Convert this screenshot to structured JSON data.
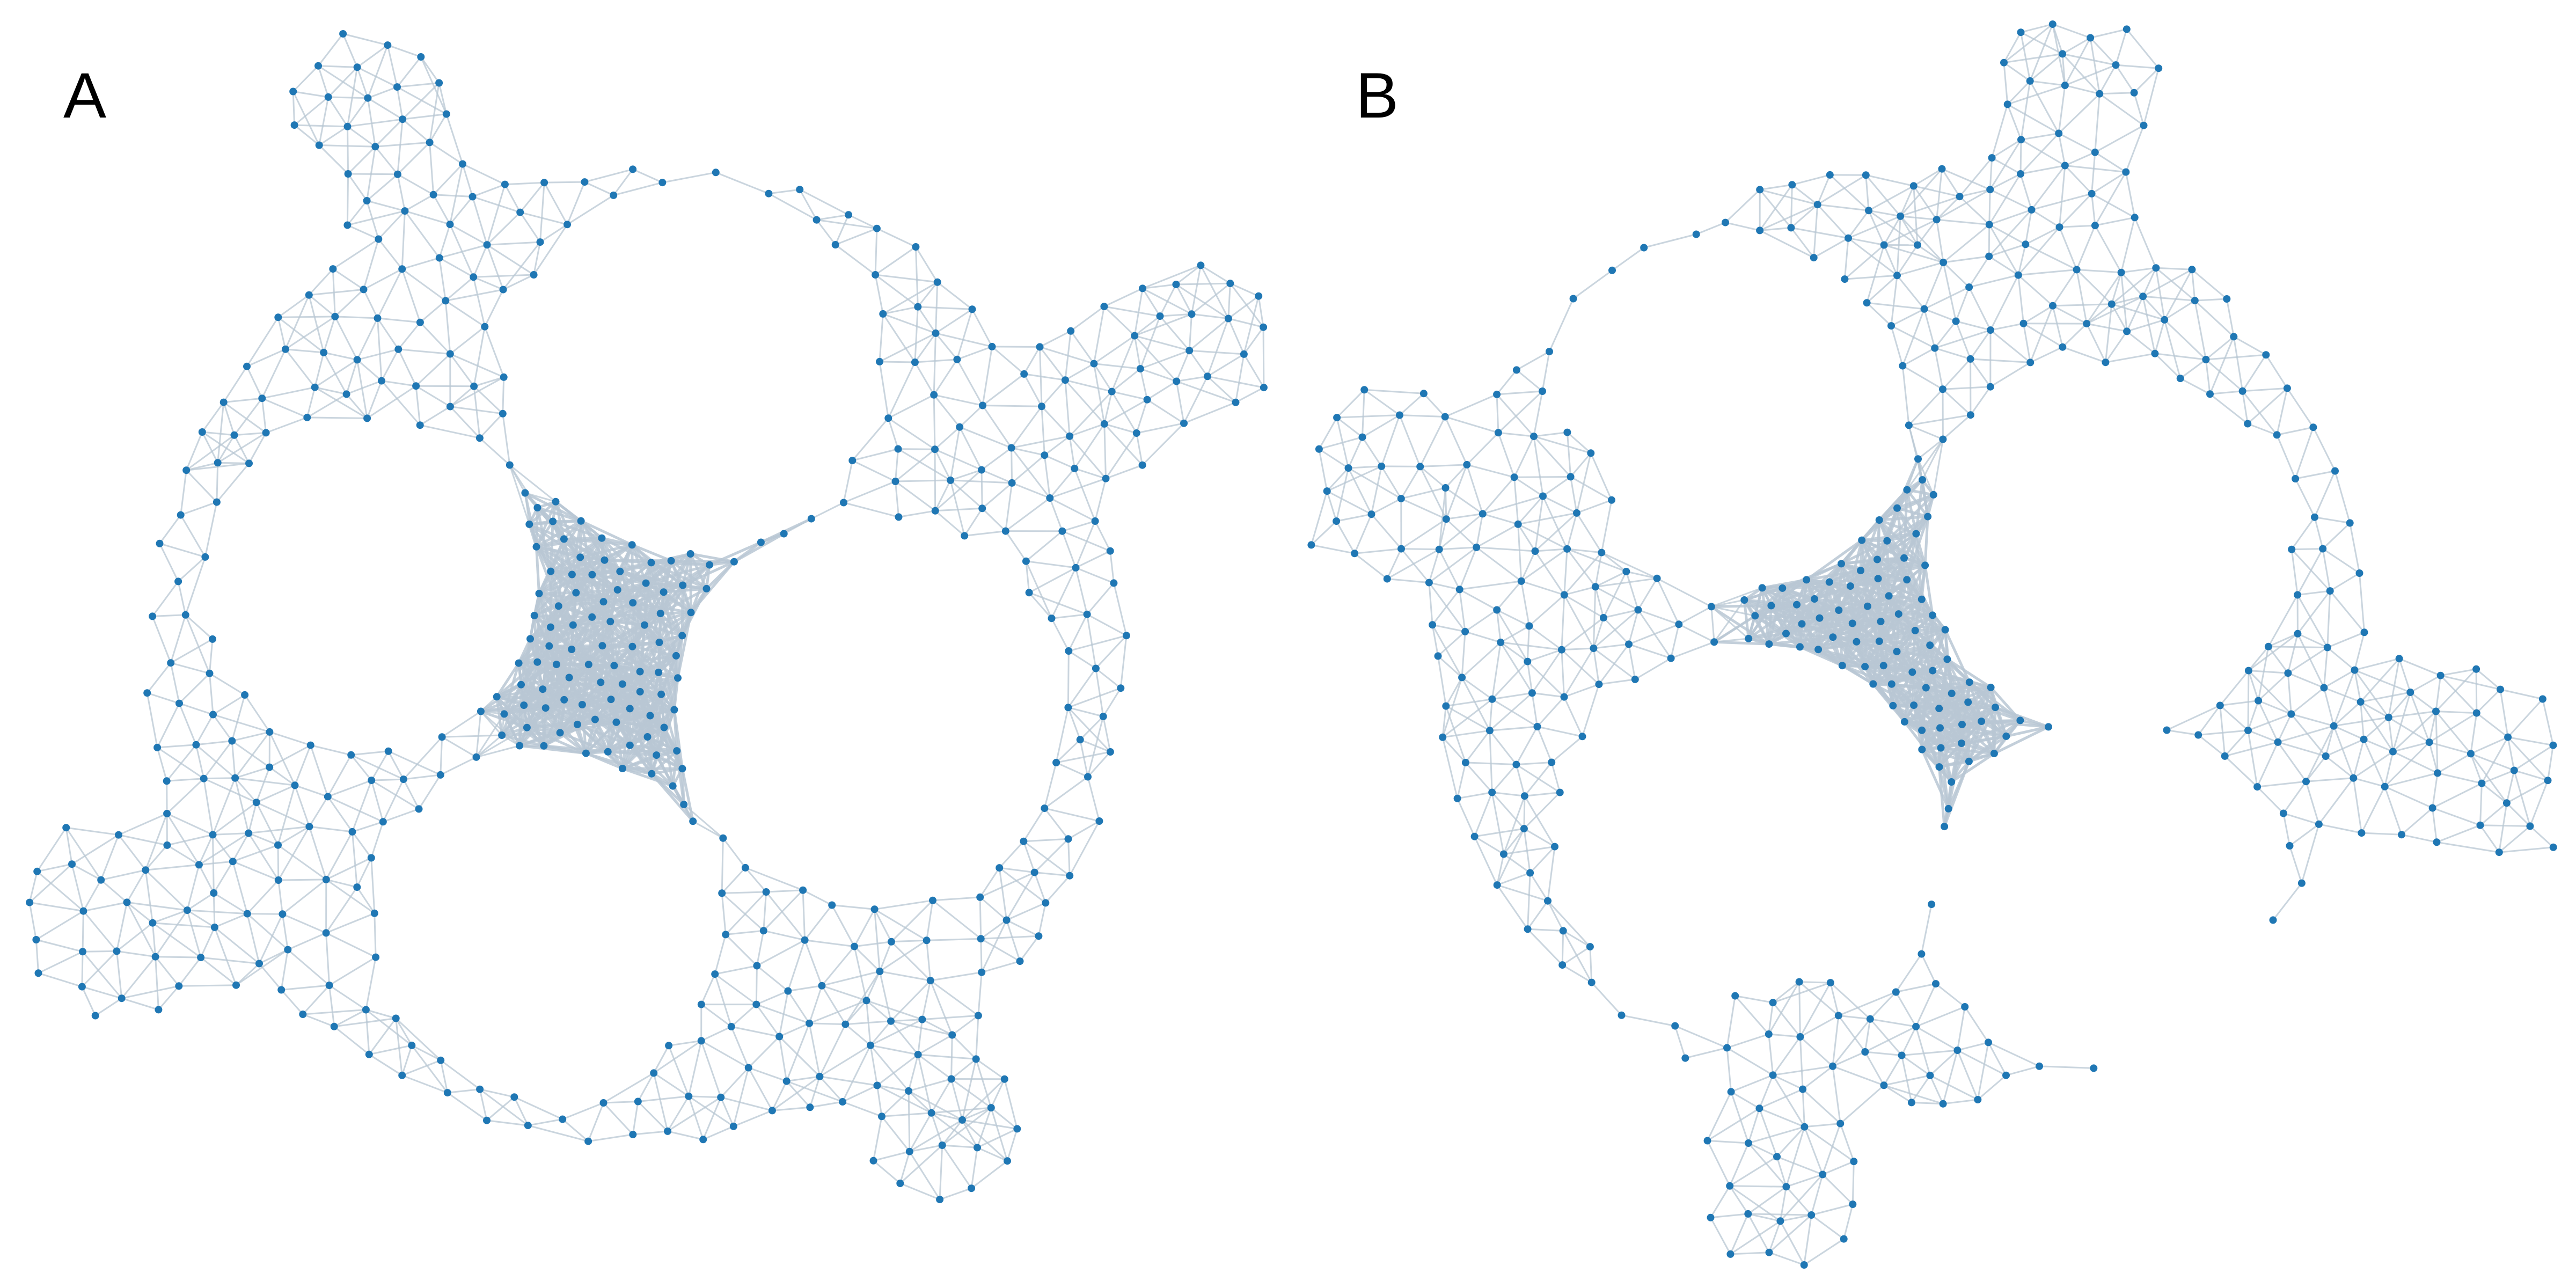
{
  "figure": {
    "panels": [
      {
        "label": "A",
        "arms": 4,
        "holes": 4
      },
      {
        "label": "B",
        "arms": 4,
        "holes": 4
      }
    ]
  },
  "colors": {
    "node": "#1f77b4",
    "edge": "#b8c7d3"
  }
}
